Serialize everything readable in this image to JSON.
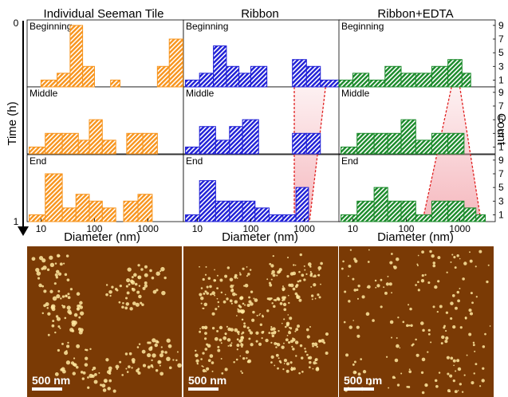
{
  "panel_titles": [
    "Individual Seeman Tile",
    "Ribbon",
    "Ribbon+EDTA"
  ],
  "row_labels": [
    "Beginning",
    "Middle",
    "End"
  ],
  "time_axis": {
    "label": "Time (h)",
    "start": "0",
    "end": "1"
  },
  "count_axis": {
    "label": "Count",
    "ticks": [
      "1",
      "3",
      "5",
      "7",
      "9"
    ]
  },
  "x_axis": {
    "label": "Diameter (nm)",
    "ticks": [
      "10",
      "100",
      "1000"
    ],
    "scale": "log"
  },
  "scale_bar_label": "500 nm",
  "colors": {
    "Individual Seeman Tile": "#f7941d",
    "Ribbon": "#1f1fd6",
    "Ribbon+EDTA": "#1a8a2a",
    "shift_fill": "#f2a0a8",
    "shift_line": "#e02020",
    "afm_background": "#7a3a05",
    "afm_particle": "#ffe9a0"
  },
  "chart_data": [
    {
      "type": "bar",
      "panel": "Individual Seeman Tile",
      "row": "Beginning",
      "bins": [
        [
          10,
          20,
          1
        ],
        [
          20,
          35,
          2
        ],
        [
          35,
          60,
          9
        ],
        [
          60,
          100,
          3
        ],
        [
          200,
          300,
          1
        ],
        [
          1500,
          2500,
          3
        ],
        [
          2500,
          4500,
          7
        ]
      ]
    },
    {
      "type": "bar",
      "panel": "Individual Seeman Tile",
      "row": "Middle",
      "bins": [
        [
          6,
          12,
          1
        ],
        [
          12,
          25,
          3
        ],
        [
          25,
          50,
          3
        ],
        [
          50,
          80,
          2
        ],
        [
          80,
          140,
          5
        ],
        [
          140,
          250,
          2
        ],
        [
          400,
          800,
          3
        ],
        [
          800,
          1500,
          3
        ]
      ]
    },
    {
      "type": "bar",
      "panel": "Individual Seeman Tile",
      "row": "End",
      "bins": [
        [
          6,
          12,
          1
        ],
        [
          12,
          25,
          7
        ],
        [
          25,
          45,
          2
        ],
        [
          45,
          80,
          4
        ],
        [
          80,
          140,
          3
        ],
        [
          140,
          250,
          2
        ],
        [
          350,
          650,
          3
        ],
        [
          650,
          1200,
          4
        ]
      ]
    },
    {
      "type": "bar",
      "panel": "Ribbon",
      "row": "Beginning",
      "bins": [
        [
          6,
          11,
          1
        ],
        [
          11,
          20,
          2
        ],
        [
          20,
          35,
          6
        ],
        [
          35,
          60,
          3
        ],
        [
          60,
          100,
          2
        ],
        [
          100,
          200,
          3
        ],
        [
          600,
          1100,
          4
        ],
        [
          1100,
          2000,
          3
        ],
        [
          2000,
          4500,
          1
        ]
      ]
    },
    {
      "type": "bar",
      "panel": "Ribbon",
      "row": "Middle",
      "bins": [
        [
          6,
          11,
          1
        ],
        [
          11,
          22,
          4
        ],
        [
          22,
          40,
          2
        ],
        [
          40,
          70,
          4
        ],
        [
          70,
          140,
          5
        ],
        [
          600,
          1100,
          3
        ],
        [
          1100,
          2000,
          3
        ]
      ]
    },
    {
      "type": "bar",
      "panel": "Ribbon",
      "row": "End",
      "bins": [
        [
          6,
          11,
          1
        ],
        [
          11,
          22,
          6
        ],
        [
          22,
          40,
          3
        ],
        [
          40,
          70,
          3
        ],
        [
          70,
          120,
          3
        ],
        [
          120,
          220,
          2
        ],
        [
          220,
          400,
          1
        ],
        [
          400,
          700,
          1
        ],
        [
          700,
          1200,
          5
        ]
      ]
    },
    {
      "type": "bar",
      "panel": "Ribbon+EDTA",
      "row": "Beginning",
      "bins": [
        [
          2,
          10,
          1
        ],
        [
          10,
          20,
          2
        ],
        [
          20,
          40,
          1
        ],
        [
          40,
          80,
          3
        ],
        [
          80,
          150,
          2
        ],
        [
          150,
          300,
          2
        ],
        [
          300,
          600,
          3
        ],
        [
          600,
          1100,
          4
        ],
        [
          1100,
          1600,
          2
        ]
      ]
    },
    {
      "type": "bar",
      "panel": "Ribbon+EDTA",
      "row": "Middle",
      "bins": [
        [
          6,
          12,
          1
        ],
        [
          12,
          25,
          3
        ],
        [
          25,
          45,
          3
        ],
        [
          45,
          80,
          3
        ],
        [
          80,
          150,
          5
        ],
        [
          150,
          300,
          2
        ],
        [
          300,
          600,
          3
        ],
        [
          600,
          1200,
          3
        ]
      ]
    },
    {
      "type": "bar",
      "panel": "Ribbon+EDTA",
      "row": "End",
      "bins": [
        [
          6,
          12,
          1
        ],
        [
          12,
          25,
          3
        ],
        [
          25,
          45,
          5
        ],
        [
          45,
          80,
          3
        ],
        [
          80,
          150,
          3
        ],
        [
          150,
          300,
          1
        ],
        [
          300,
          600,
          3
        ],
        [
          600,
          1200,
          3
        ],
        [
          1200,
          2000,
          2
        ],
        [
          2000,
          3000,
          1
        ]
      ]
    }
  ],
  "shift_regions": [
    {
      "panel": "Ribbon",
      "top": [
        650,
        2500
      ],
      "bottom": [
        650,
        1250
      ]
    },
    {
      "panel": "Ribbon+EDTA",
      "top": [
        700,
        1000
      ],
      "bottom": [
        200,
        2500
      ]
    }
  ]
}
